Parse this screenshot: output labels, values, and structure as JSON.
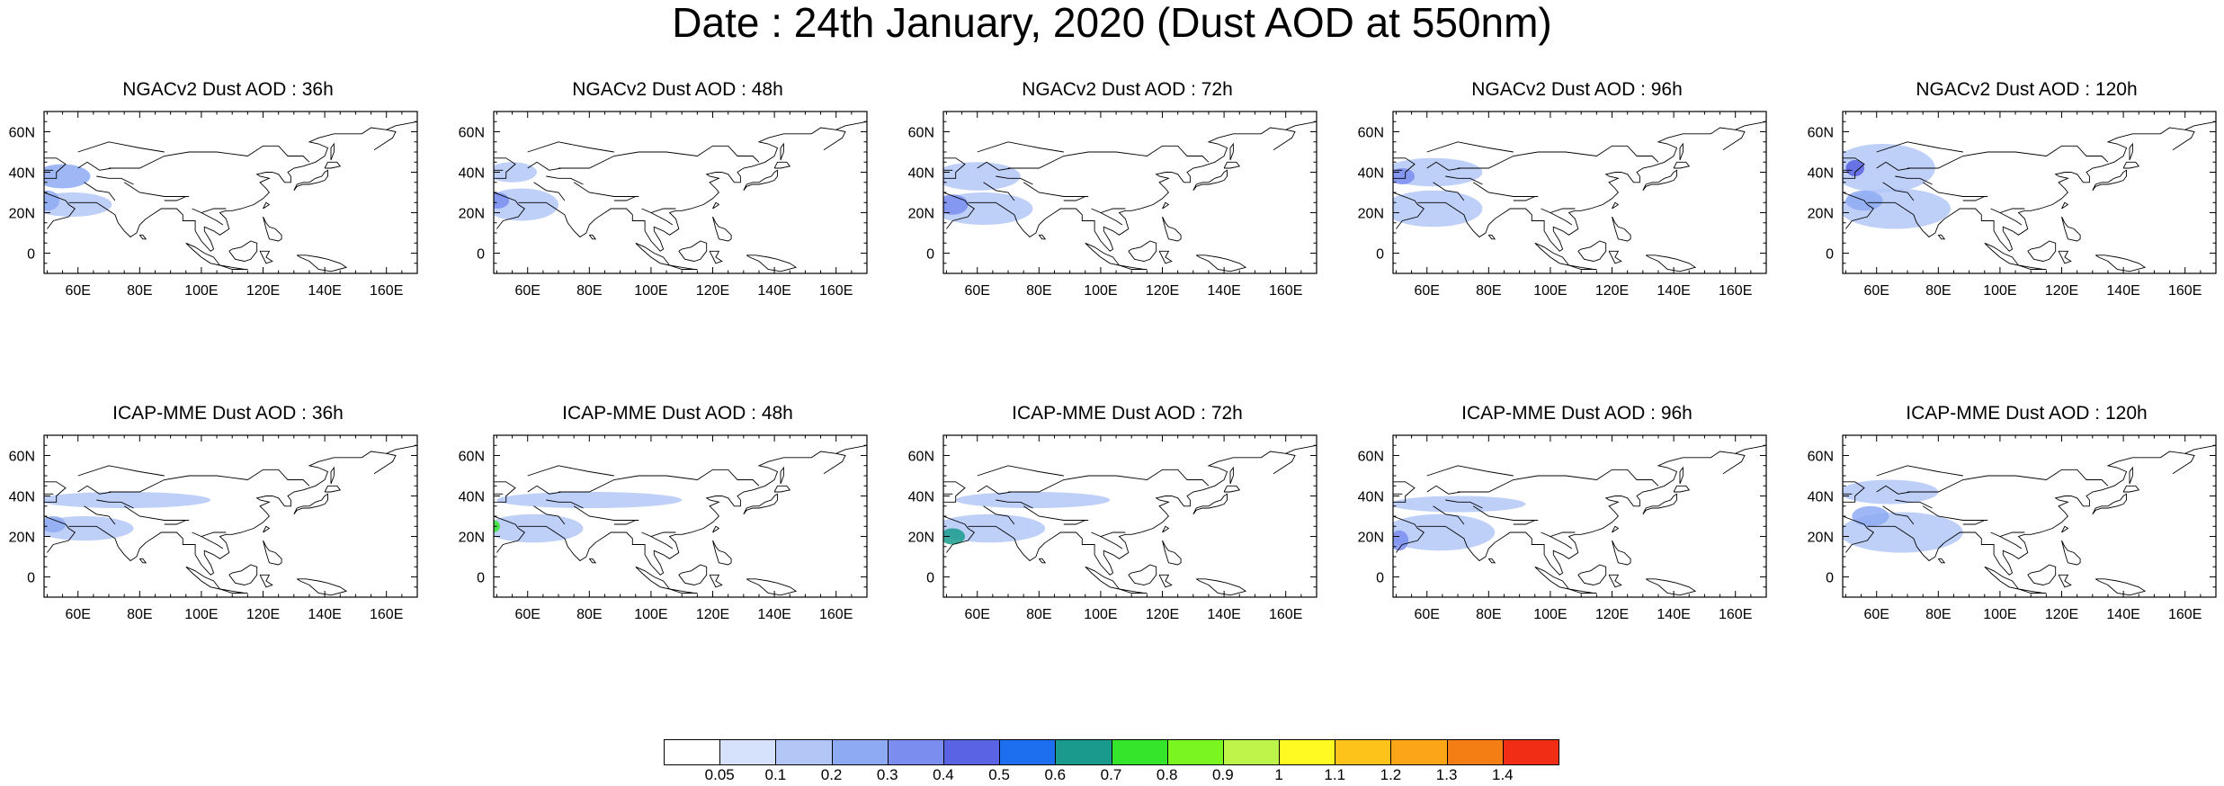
{
  "title": "Date : 24th January, 2020 (Dust AOD at 550nm)",
  "panels": [
    {
      "label": "NGACv2 Dust AOD : 36h",
      "plumes": [
        {
          "lon": 55,
          "lat": 38,
          "rx": 9,
          "ry": 6,
          "aod": 0.2
        },
        {
          "lon": 58,
          "lat": 24,
          "rx": 13,
          "ry": 6,
          "aod": 0.15
        },
        {
          "lon": 50,
          "lat": 26,
          "rx": 4,
          "ry": 5,
          "aod": 0.25
        }
      ]
    },
    {
      "label": "NGACv2 Dust AOD : 48h",
      "plumes": [
        {
          "lon": 55,
          "lat": 40,
          "rx": 8,
          "ry": 5,
          "aod": 0.15
        },
        {
          "lon": 58,
          "lat": 24,
          "rx": 12,
          "ry": 8,
          "aod": 0.15
        },
        {
          "lon": 50,
          "lat": 26,
          "rx": 4,
          "ry": 4,
          "aod": 0.3
        }
      ]
    },
    {
      "label": "NGACv2 Dust AOD : 72h",
      "plumes": [
        {
          "lon": 60,
          "lat": 38,
          "rx": 14,
          "ry": 7,
          "aod": 0.15
        },
        {
          "lon": 62,
          "lat": 22,
          "rx": 16,
          "ry": 8,
          "aod": 0.15
        },
        {
          "lon": 52,
          "lat": 24,
          "rx": 5,
          "ry": 5,
          "aod": 0.3
        }
      ]
    },
    {
      "label": "NGACv2 Dust AOD : 96h",
      "plumes": [
        {
          "lon": 62,
          "lat": 40,
          "rx": 16,
          "ry": 7,
          "aod": 0.15
        },
        {
          "lon": 62,
          "lat": 22,
          "rx": 16,
          "ry": 9,
          "aod": 0.15
        },
        {
          "lon": 52,
          "lat": 38,
          "rx": 4,
          "ry": 4,
          "aod": 0.3
        }
      ]
    },
    {
      "label": "NGACv2 Dust AOD : 120h",
      "plumes": [
        {
          "lon": 62,
          "lat": 42,
          "rx": 17,
          "ry": 12,
          "aod": 0.15
        },
        {
          "lon": 66,
          "lat": 22,
          "rx": 18,
          "ry": 10,
          "aod": 0.15
        },
        {
          "lon": 53,
          "lat": 42,
          "rx": 3,
          "ry": 4,
          "aod": 0.45
        },
        {
          "lon": 56,
          "lat": 26,
          "rx": 6,
          "ry": 5,
          "aod": 0.25
        }
      ]
    },
    {
      "label": "ICAP-MME Dust AOD : 36h",
      "plumes": [
        {
          "lon": 75,
          "lat": 38,
          "rx": 28,
          "ry": 4,
          "aod": 0.15
        },
        {
          "lon": 62,
          "lat": 24,
          "rx": 16,
          "ry": 6,
          "aod": 0.15
        },
        {
          "lon": 52,
          "lat": 26,
          "rx": 4,
          "ry": 4,
          "aod": 0.25
        }
      ]
    },
    {
      "label": "ICAP-MME Dust AOD : 48h",
      "plumes": [
        {
          "lon": 80,
          "lat": 38,
          "rx": 30,
          "ry": 4,
          "aod": 0.15
        },
        {
          "lon": 62,
          "lat": 24,
          "rx": 16,
          "ry": 7,
          "aod": 0.15
        },
        {
          "lon": 49,
          "lat": 25,
          "rx": 2,
          "ry": 3,
          "aod": 0.75
        }
      ]
    },
    {
      "label": "ICAP-MME Dust AOD : 72h",
      "plumes": [
        {
          "lon": 78,
          "lat": 38,
          "rx": 25,
          "ry": 4,
          "aod": 0.15
        },
        {
          "lon": 64,
          "lat": 24,
          "rx": 18,
          "ry": 7,
          "aod": 0.15
        },
        {
          "lon": 52,
          "lat": 20,
          "rx": 4,
          "ry": 4,
          "aod": 0.65
        }
      ]
    },
    {
      "label": "ICAP-MME Dust AOD : 96h",
      "plumes": [
        {
          "lon": 70,
          "lat": 36,
          "rx": 22,
          "ry": 4,
          "aod": 0.15
        },
        {
          "lon": 64,
          "lat": 22,
          "rx": 18,
          "ry": 9,
          "aod": 0.15
        },
        {
          "lon": 51,
          "lat": 18,
          "rx": 3,
          "ry": 5,
          "aod": 0.3
        }
      ]
    },
    {
      "label": "ICAP-MME Dust AOD : 120h",
      "plumes": [
        {
          "lon": 64,
          "lat": 42,
          "rx": 16,
          "ry": 6,
          "aod": 0.15
        },
        {
          "lon": 68,
          "lat": 22,
          "rx": 20,
          "ry": 10,
          "aod": 0.15
        },
        {
          "lon": 58,
          "lat": 30,
          "rx": 6,
          "ry": 5,
          "aod": 0.25
        }
      ]
    }
  ],
  "x_ticks": [
    {
      "lon": 60,
      "label": "60E"
    },
    {
      "lon": 80,
      "label": "80E"
    },
    {
      "lon": 100,
      "label": "100E"
    },
    {
      "lon": 120,
      "label": "120E"
    },
    {
      "lon": 140,
      "label": "140E"
    },
    {
      "lon": 160,
      "label": "160E"
    }
  ],
  "y_ticks": [
    {
      "lat": 60,
      "label": "60N"
    },
    {
      "lat": 40,
      "label": "40N"
    },
    {
      "lat": 20,
      "label": "20N"
    },
    {
      "lat": 0,
      "label": "0"
    }
  ],
  "map_extent": {
    "lon_min": 49,
    "lon_max": 170,
    "lat_min": -10,
    "lat_max": 70
  },
  "colorbar": {
    "colors": [
      "#ffffff",
      "#d6e1fb",
      "#b3c7f7",
      "#8eaaf2",
      "#7b8ef0",
      "#5a63e3",
      "#1e6ef0",
      "#1a9a8c",
      "#34e52b",
      "#7bf51f",
      "#bdf54b",
      "#fffa22",
      "#fdc31a",
      "#fca516",
      "#f57e14",
      "#f12d16"
    ],
    "labels": [
      "0.05",
      "0.1",
      "0.2",
      "0.3",
      "0.4",
      "0.5",
      "0.6",
      "0.7",
      "0.8",
      "0.9",
      "1",
      "1.1",
      "1.2",
      "1.3",
      "1.4"
    ],
    "thresholds": [
      0.05,
      0.1,
      0.2,
      0.3,
      0.4,
      0.5,
      0.6,
      0.7,
      0.8,
      0.9,
      1,
      1.1,
      1.2,
      1.3,
      1.4
    ]
  }
}
